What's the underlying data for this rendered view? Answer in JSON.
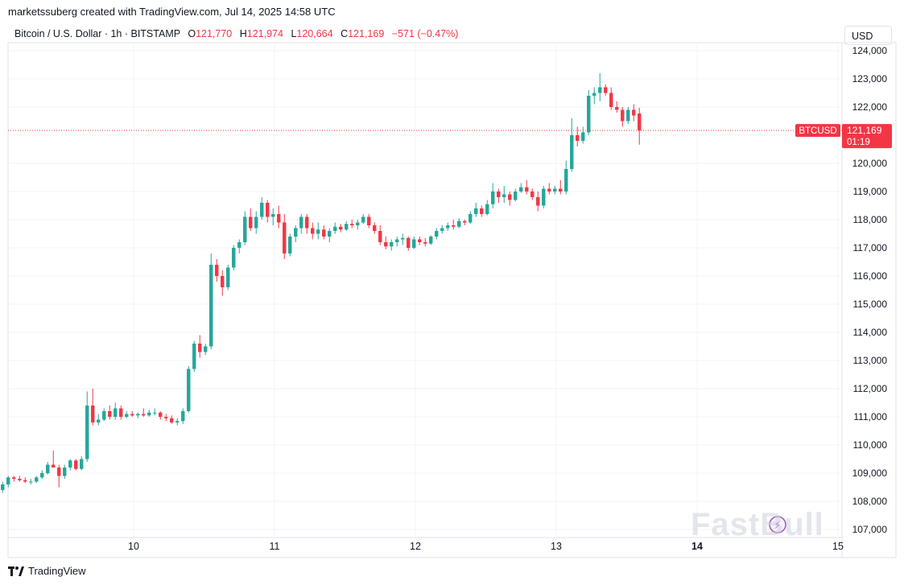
{
  "header": {
    "created_line": "marketssuberg created with TradingView.com, Jul 14, 2025 14:58 UTC"
  },
  "legend": {
    "symbol": "Bitcoin / U.S. Dollar · 1h · BITSTAMP",
    "o_label": "O",
    "o_value": "121,770",
    "h_label": "H",
    "h_value": "121,974",
    "l_label": "L",
    "l_value": "120,664",
    "c_label": "C",
    "c_value": "121,169",
    "change": "−571 (−0.47%)"
  },
  "currency_label": "USD",
  "price_tag": {
    "ticker": "BTCUSD",
    "price": "121,169",
    "countdown": "01:19"
  },
  "footer": {
    "brand": "TradingView"
  },
  "watermark": "FastBull",
  "colors": {
    "up": "#26a69a",
    "down": "#f23645",
    "grid": "#f0f3fa",
    "text": "#131722"
  },
  "chart_data": {
    "type": "candlestick",
    "title": "Bitcoin / U.S. Dollar · 1h · BITSTAMP",
    "y_axis": {
      "min": 106500,
      "max": 124300,
      "ticks": [
        107000,
        108000,
        109000,
        110000,
        111000,
        112000,
        113000,
        114000,
        115000,
        116000,
        117000,
        118000,
        119000,
        120000,
        121000,
        122000,
        123000,
        124000
      ],
      "tick_labels": [
        "107,000",
        "108,000",
        "109,000",
        "110,000",
        "111,000",
        "112,000",
        "113,000",
        "114,000",
        "115,000",
        "116,000",
        "117,000",
        "118,000",
        "119,000",
        "120,000",
        "121,000",
        "122,000",
        "123,000",
        "124,000"
      ],
      "position": "right"
    },
    "x_axis": {
      "min": 9.0,
      "max": 15.0,
      "ticks": [
        10,
        11,
        12,
        13,
        14,
        15
      ],
      "tick_labels": [
        "10",
        "11",
        "12",
        "13",
        "14",
        "15"
      ],
      "bold_tick": "14"
    },
    "last_price": 121169,
    "grid": true,
    "candles": [
      {
        "t": 9.03,
        "o": 108650,
        "h": 108700,
        "l": 108350,
        "c": 108400
      },
      {
        "t": 9.07,
        "o": 108400,
        "h": 108700,
        "l": 108300,
        "c": 108600
      },
      {
        "t": 9.11,
        "o": 108600,
        "h": 108900,
        "l": 108500,
        "c": 108850
      },
      {
        "t": 9.15,
        "o": 108850,
        "h": 108900,
        "l": 108700,
        "c": 108800
      },
      {
        "t": 9.19,
        "o": 108800,
        "h": 108900,
        "l": 108700,
        "c": 108750
      },
      {
        "t": 9.23,
        "o": 108750,
        "h": 108850,
        "l": 108650,
        "c": 108700
      },
      {
        "t": 9.27,
        "o": 108700,
        "h": 108800,
        "l": 108600,
        "c": 108700
      },
      {
        "t": 9.31,
        "o": 108700,
        "h": 108900,
        "l": 108650,
        "c": 108850
      },
      {
        "t": 9.35,
        "o": 108850,
        "h": 109100,
        "l": 108800,
        "c": 109000
      },
      {
        "t": 9.39,
        "o": 109000,
        "h": 109400,
        "l": 108950,
        "c": 109300
      },
      {
        "t": 9.43,
        "o": 109300,
        "h": 109800,
        "l": 109200,
        "c": 109200
      },
      {
        "t": 9.47,
        "o": 109200,
        "h": 109300,
        "l": 108500,
        "c": 108900
      },
      {
        "t": 9.51,
        "o": 108900,
        "h": 109300,
        "l": 108800,
        "c": 109200
      },
      {
        "t": 9.55,
        "o": 109200,
        "h": 109500,
        "l": 109100,
        "c": 109450
      },
      {
        "t": 9.59,
        "o": 109450,
        "h": 109500,
        "l": 109100,
        "c": 109150
      },
      {
        "t": 9.63,
        "o": 109150,
        "h": 109600,
        "l": 109100,
        "c": 109500
      },
      {
        "t": 9.67,
        "o": 109500,
        "h": 111900,
        "l": 109400,
        "c": 111400
      },
      {
        "t": 9.71,
        "o": 111400,
        "h": 112000,
        "l": 110700,
        "c": 110800
      },
      {
        "t": 9.75,
        "o": 110800,
        "h": 111100,
        "l": 110700,
        "c": 110900
      },
      {
        "t": 9.79,
        "o": 110900,
        "h": 111300,
        "l": 110850,
        "c": 111200
      },
      {
        "t": 9.83,
        "o": 111200,
        "h": 111400,
        "l": 110900,
        "c": 111000
      },
      {
        "t": 9.87,
        "o": 111000,
        "h": 111500,
        "l": 110900,
        "c": 111300
      },
      {
        "t": 9.91,
        "o": 111300,
        "h": 111400,
        "l": 110900,
        "c": 111000
      },
      {
        "t": 9.95,
        "o": 111000,
        "h": 111200,
        "l": 110950,
        "c": 111100
      },
      {
        "t": 9.99,
        "o": 111100,
        "h": 111200,
        "l": 111000,
        "c": 111050
      },
      {
        "t": 10.03,
        "o": 111050,
        "h": 111150,
        "l": 110950,
        "c": 111100
      },
      {
        "t": 10.07,
        "o": 111100,
        "h": 111300,
        "l": 111000,
        "c": 111050
      },
      {
        "t": 10.11,
        "o": 111050,
        "h": 111250,
        "l": 111000,
        "c": 111150
      },
      {
        "t": 10.15,
        "o": 111150,
        "h": 111300,
        "l": 111050,
        "c": 111150
      },
      {
        "t": 10.19,
        "o": 111150,
        "h": 111200,
        "l": 110900,
        "c": 111000
      },
      {
        "t": 10.23,
        "o": 111000,
        "h": 111100,
        "l": 110850,
        "c": 110950
      },
      {
        "t": 10.27,
        "o": 110950,
        "h": 111050,
        "l": 110750,
        "c": 110800
      },
      {
        "t": 10.31,
        "o": 110800,
        "h": 110950,
        "l": 110700,
        "c": 110850
      },
      {
        "t": 10.35,
        "o": 110850,
        "h": 111300,
        "l": 110750,
        "c": 111200
      },
      {
        "t": 10.39,
        "o": 111200,
        "h": 112800,
        "l": 111150,
        "c": 112700
      },
      {
        "t": 10.43,
        "o": 112700,
        "h": 113700,
        "l": 112600,
        "c": 113600
      },
      {
        "t": 10.47,
        "o": 113600,
        "h": 113900,
        "l": 113100,
        "c": 113300
      },
      {
        "t": 10.51,
        "o": 113300,
        "h": 113600,
        "l": 113200,
        "c": 113500
      },
      {
        "t": 10.55,
        "o": 113500,
        "h": 116800,
        "l": 113400,
        "c": 116400
      },
      {
        "t": 10.59,
        "o": 116400,
        "h": 116600,
        "l": 115800,
        "c": 116000
      },
      {
        "t": 10.63,
        "o": 116000,
        "h": 116200,
        "l": 115300,
        "c": 115600
      },
      {
        "t": 10.67,
        "o": 115600,
        "h": 116400,
        "l": 115500,
        "c": 116300
      },
      {
        "t": 10.71,
        "o": 116300,
        "h": 117100,
        "l": 116200,
        "c": 117000
      },
      {
        "t": 10.75,
        "o": 117000,
        "h": 117300,
        "l": 116800,
        "c": 117200
      },
      {
        "t": 10.79,
        "o": 117200,
        "h": 118300,
        "l": 117100,
        "c": 118100
      },
      {
        "t": 10.83,
        "o": 118100,
        "h": 118400,
        "l": 117600,
        "c": 117700
      },
      {
        "t": 10.87,
        "o": 117700,
        "h": 118300,
        "l": 117500,
        "c": 118100
      },
      {
        "t": 10.91,
        "o": 118100,
        "h": 118800,
        "l": 118000,
        "c": 118600
      },
      {
        "t": 10.95,
        "o": 118600,
        "h": 118700,
        "l": 117900,
        "c": 118100
      },
      {
        "t": 10.99,
        "o": 118100,
        "h": 118400,
        "l": 117800,
        "c": 118200
      },
      {
        "t": 11.03,
        "o": 118200,
        "h": 118500,
        "l": 117700,
        "c": 117900
      },
      {
        "t": 11.07,
        "o": 117900,
        "h": 118200,
        "l": 116600,
        "c": 116800
      },
      {
        "t": 11.11,
        "o": 116800,
        "h": 117500,
        "l": 116700,
        "c": 117400
      },
      {
        "t": 11.15,
        "o": 117400,
        "h": 117800,
        "l": 117200,
        "c": 117700
      },
      {
        "t": 11.19,
        "o": 117700,
        "h": 118200,
        "l": 117500,
        "c": 118100
      },
      {
        "t": 11.23,
        "o": 118100,
        "h": 118200,
        "l": 117500,
        "c": 117700
      },
      {
        "t": 11.27,
        "o": 117700,
        "h": 117900,
        "l": 117300,
        "c": 117500
      },
      {
        "t": 11.31,
        "o": 117500,
        "h": 117900,
        "l": 117300,
        "c": 117650
      },
      {
        "t": 11.35,
        "o": 117650,
        "h": 117800,
        "l": 117300,
        "c": 117400
      },
      {
        "t": 11.39,
        "o": 117400,
        "h": 117700,
        "l": 117200,
        "c": 117600
      },
      {
        "t": 11.43,
        "o": 117600,
        "h": 117900,
        "l": 117500,
        "c": 117750
      },
      {
        "t": 11.47,
        "o": 117750,
        "h": 117850,
        "l": 117550,
        "c": 117650
      },
      {
        "t": 11.51,
        "o": 117650,
        "h": 117950,
        "l": 117600,
        "c": 117850
      },
      {
        "t": 11.55,
        "o": 117850,
        "h": 118000,
        "l": 117700,
        "c": 117800
      },
      {
        "t": 11.59,
        "o": 117800,
        "h": 118000,
        "l": 117650,
        "c": 117900
      },
      {
        "t": 11.63,
        "o": 117900,
        "h": 118200,
        "l": 117850,
        "c": 118100
      },
      {
        "t": 11.67,
        "o": 118100,
        "h": 118200,
        "l": 117700,
        "c": 117800
      },
      {
        "t": 11.71,
        "o": 117800,
        "h": 117900,
        "l": 117500,
        "c": 117600
      },
      {
        "t": 11.75,
        "o": 117600,
        "h": 117800,
        "l": 117100,
        "c": 117200
      },
      {
        "t": 11.79,
        "o": 117200,
        "h": 117400,
        "l": 116950,
        "c": 117050
      },
      {
        "t": 11.83,
        "o": 117050,
        "h": 117300,
        "l": 116900,
        "c": 117200
      },
      {
        "t": 11.87,
        "o": 117200,
        "h": 117400,
        "l": 117050,
        "c": 117300
      },
      {
        "t": 11.91,
        "o": 117300,
        "h": 117500,
        "l": 117100,
        "c": 117350
      },
      {
        "t": 11.95,
        "o": 117350,
        "h": 117400,
        "l": 116900,
        "c": 117000
      },
      {
        "t": 11.99,
        "o": 117000,
        "h": 117400,
        "l": 116950,
        "c": 117300
      },
      {
        "t": 12.03,
        "o": 117300,
        "h": 117400,
        "l": 117100,
        "c": 117200
      },
      {
        "t": 12.07,
        "o": 117200,
        "h": 117350,
        "l": 117050,
        "c": 117150
      },
      {
        "t": 12.11,
        "o": 117150,
        "h": 117450,
        "l": 117100,
        "c": 117400
      },
      {
        "t": 12.15,
        "o": 117400,
        "h": 117700,
        "l": 117300,
        "c": 117600
      },
      {
        "t": 12.19,
        "o": 117600,
        "h": 117800,
        "l": 117500,
        "c": 117700
      },
      {
        "t": 12.23,
        "o": 117700,
        "h": 117900,
        "l": 117600,
        "c": 117800
      },
      {
        "t": 12.27,
        "o": 117800,
        "h": 118000,
        "l": 117650,
        "c": 117750
      },
      {
        "t": 12.31,
        "o": 117750,
        "h": 118050,
        "l": 117700,
        "c": 117950
      },
      {
        "t": 12.35,
        "o": 117950,
        "h": 118000,
        "l": 117800,
        "c": 117900
      },
      {
        "t": 12.39,
        "o": 117900,
        "h": 118300,
        "l": 117850,
        "c": 118200
      },
      {
        "t": 12.43,
        "o": 118200,
        "h": 118600,
        "l": 118100,
        "c": 118400
      },
      {
        "t": 12.47,
        "o": 118400,
        "h": 118500,
        "l": 118100,
        "c": 118200
      },
      {
        "t": 12.51,
        "o": 118200,
        "h": 118700,
        "l": 118150,
        "c": 118550
      },
      {
        "t": 12.55,
        "o": 118550,
        "h": 119300,
        "l": 118400,
        "c": 119000
      },
      {
        "t": 12.59,
        "o": 119000,
        "h": 119100,
        "l": 118600,
        "c": 118800
      },
      {
        "t": 12.63,
        "o": 118800,
        "h": 119200,
        "l": 118600,
        "c": 118900
      },
      {
        "t": 12.67,
        "o": 118900,
        "h": 119000,
        "l": 118500,
        "c": 118700
      },
      {
        "t": 12.71,
        "o": 118700,
        "h": 119100,
        "l": 118650,
        "c": 119000
      },
      {
        "t": 12.75,
        "o": 119000,
        "h": 119300,
        "l": 118950,
        "c": 119150
      },
      {
        "t": 12.79,
        "o": 119150,
        "h": 119400,
        "l": 118900,
        "c": 119000
      },
      {
        "t": 12.83,
        "o": 119000,
        "h": 119100,
        "l": 118700,
        "c": 118800
      },
      {
        "t": 12.87,
        "o": 118800,
        "h": 119000,
        "l": 118300,
        "c": 118500
      },
      {
        "t": 12.91,
        "o": 118500,
        "h": 119200,
        "l": 118400,
        "c": 119100
      },
      {
        "t": 12.95,
        "o": 119100,
        "h": 119300,
        "l": 118900,
        "c": 119000
      },
      {
        "t": 12.99,
        "o": 119000,
        "h": 119200,
        "l": 118900,
        "c": 119100
      },
      {
        "t": 13.03,
        "o": 119100,
        "h": 119400,
        "l": 118900,
        "c": 119000
      },
      {
        "t": 13.07,
        "o": 119000,
        "h": 120100,
        "l": 118900,
        "c": 119800
      },
      {
        "t": 13.11,
        "o": 119800,
        "h": 121600,
        "l": 119700,
        "c": 121000
      },
      {
        "t": 13.15,
        "o": 121000,
        "h": 121300,
        "l": 120600,
        "c": 120800
      },
      {
        "t": 13.19,
        "o": 120800,
        "h": 121300,
        "l": 120700,
        "c": 121100
      },
      {
        "t": 13.23,
        "o": 121100,
        "h": 122600,
        "l": 121000,
        "c": 122400
      },
      {
        "t": 13.27,
        "o": 122400,
        "h": 122700,
        "l": 122100,
        "c": 122500
      },
      {
        "t": 13.31,
        "o": 122500,
        "h": 123200,
        "l": 122200,
        "c": 122700
      },
      {
        "t": 13.35,
        "o": 122700,
        "h": 122800,
        "l": 122400,
        "c": 122500
      },
      {
        "t": 13.39,
        "o": 122500,
        "h": 122700,
        "l": 121900,
        "c": 122000
      },
      {
        "t": 13.43,
        "o": 122000,
        "h": 122200,
        "l": 121800,
        "c": 121900
      },
      {
        "t": 13.47,
        "o": 121900,
        "h": 122000,
        "l": 121300,
        "c": 121500
      },
      {
        "t": 13.51,
        "o": 121500,
        "h": 122000,
        "l": 121400,
        "c": 121900
      },
      {
        "t": 13.55,
        "o": 121900,
        "h": 122100,
        "l": 121500,
        "c": 121700
      },
      {
        "t": 13.59,
        "o": 121770,
        "h": 121974,
        "l": 120664,
        "c": 121169
      }
    ]
  }
}
